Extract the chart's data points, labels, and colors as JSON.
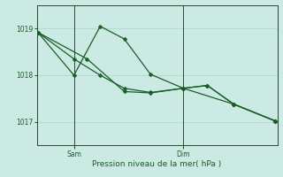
{
  "background_color": "#cceae4",
  "grid_color": "#aad4cc",
  "line_color": "#1a5c28",
  "marker_color": "#1a5c28",
  "xlabel": "Pression niveau de la mer( hPa )",
  "xlabel_color": "#1a5c28",
  "tick_color": "#1a5c28",
  "axis_color": "#2a4a2a",
  "ylim": [
    1016.5,
    1019.5
  ],
  "yticks": [
    1017,
    1018,
    1019
  ],
  "xlim": [
    0,
    11
  ],
  "sam_x": 1.7,
  "dim_x": 6.7,
  "line1_x": [
    0.05,
    1.7,
    2.9,
    4.0,
    5.2,
    6.7,
    7.8,
    9.0,
    10.9
  ],
  "line1_y": [
    1018.92,
    1018.35,
    1018.0,
    1017.72,
    1017.63,
    1017.72,
    1017.78,
    1017.38,
    1017.02
  ],
  "line2_x": [
    0.05,
    1.7,
    2.9,
    4.0,
    5.2,
    6.7,
    9.0,
    10.9
  ],
  "line2_y": [
    1018.92,
    1018.0,
    1019.05,
    1018.78,
    1018.02,
    1017.72,
    1017.38,
    1017.02
  ],
  "line3_x": [
    0.05,
    2.3,
    4.0,
    5.2,
    6.7,
    7.8,
    9.0,
    10.9
  ],
  "line3_y": [
    1018.92,
    1018.35,
    1017.65,
    1017.62,
    1017.72,
    1017.78,
    1017.38,
    1017.02
  ]
}
